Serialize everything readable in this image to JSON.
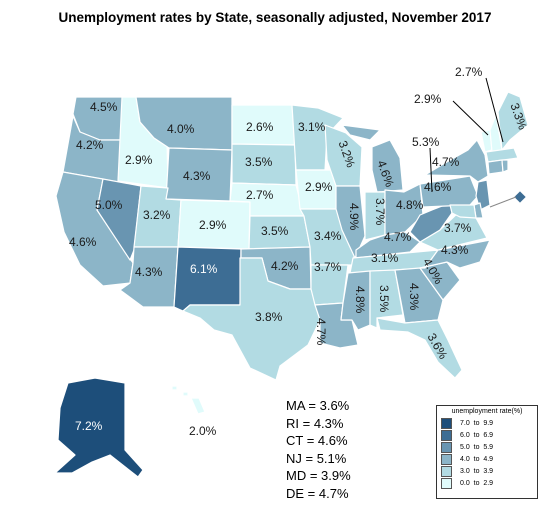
{
  "title": "Unemployment rates by State, seasonally adjusted,  November 2017",
  "legend": {
    "title": "unemployment rate(%)",
    "bins": [
      {
        "label": "7.0  to  9.9",
        "color": "#1d4e7a"
      },
      {
        "label": "6.0  to  6.9",
        "color": "#3d6d94"
      },
      {
        "label": "5.0  to  5.9",
        "color": "#6995b1"
      },
      {
        "label": "4.0  to  4.9",
        "color": "#8cb5c8"
      },
      {
        "label": "3.0  to  3.9",
        "color": "#b2dbe3"
      },
      {
        "label": "0.0  to  2.9",
        "color": "#e0fbfb"
      }
    ]
  },
  "states": {
    "WA": "4.5%",
    "OR": "4.2%",
    "CA": "4.6%",
    "ID": "2.9%",
    "NV": "5.0%",
    "MT": "4.0%",
    "WY": "4.3%",
    "UT": "3.2%",
    "AZ": "4.3%",
    "CO": "2.9%",
    "NM": "6.1%",
    "ND": "2.6%",
    "SD": "3.5%",
    "NE": "2.7%",
    "KS": "3.5%",
    "OK": "4.2%",
    "TX": "3.8%",
    "MN": "3.1%",
    "IA": "2.9%",
    "MO": "3.4%",
    "AR": "3.7%",
    "LA": "4.7%",
    "WI": "3.2%",
    "IL": "4.9%",
    "MI": "4.6%",
    "IN": "3.7%",
    "OH": "4.8%",
    "KY": "4.7%",
    "TN": "3.1%",
    "MS": "4.8%",
    "AL": "3.5%",
    "GA": "4.3%",
    "FL": "3.6%",
    "SC": "4.0%",
    "NC": "4.3%",
    "VA": "3.7%",
    "WV": "5.3%",
    "PA": "4.6%",
    "NY": "4.7%",
    "VT": "2.9%",
    "NH": "2.7%",
    "ME": "3.3%",
    "AK": "7.2%",
    "HI": "2.0%"
  },
  "small_states": [
    "MA = 3.6%",
    "RI = 4.3%",
    "CT = 4.6%",
    "NJ = 5.1%",
    "MD = 3.9%",
    "DE = 4.7%"
  ]
}
